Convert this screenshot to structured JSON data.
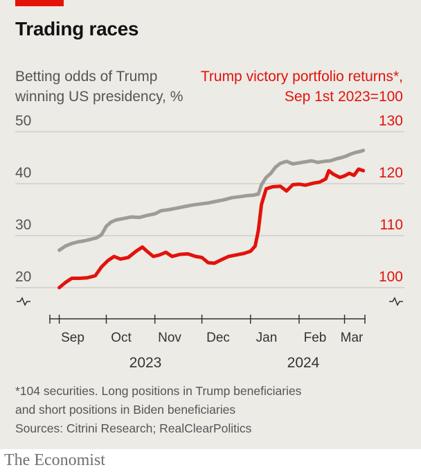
{
  "header": {
    "title": "Trading races",
    "left_axis_label": "Betting odds of Trump winning US presidency, %",
    "right_axis_label": "Trump victory portfolio returns*, Sep 1st 2023=100"
  },
  "footnote": {
    "note_line1": "*104 securities. Long positions in Trump beneficiaries",
    "note_line2": "and short positions in Biden beneficiaries",
    "sources": "Sources: Citrini Research; RealClearPolitics"
  },
  "brand": "The Economist",
  "colors": {
    "background": "#ecebe6",
    "odds_line": "#9e9d94",
    "portfolio_line": "#e3120b",
    "gridline": "#c8c8c4",
    "axis": "#333333"
  },
  "chart_data": {
    "type": "line",
    "title": "Trading races",
    "x_tick_labels": [
      "Sep",
      "Oct",
      "Nov",
      "Dec",
      "Jan",
      "Feb",
      "Mar"
    ],
    "year_labels": [
      "2023",
      "2024"
    ],
    "x_range": [
      "2023-08-26",
      "2024-03-14"
    ],
    "left_axis": {
      "label": "Betting odds of Trump winning US presidency, %",
      "ticks": [
        20,
        30,
        40,
        50
      ],
      "ylim": [
        20,
        50
      ],
      "broken_at_zero": true
    },
    "right_axis": {
      "label": "Trump victory portfolio returns*, Sep 1st 2023=100",
      "ticks": [
        100,
        110,
        120,
        130
      ],
      "ylim": [
        100,
        130
      ],
      "broken_at_zero": true
    },
    "grid": true,
    "series": [
      {
        "name": "Betting odds of Trump winning US presidency, %",
        "axis": "left",
        "color": "#9e9d94",
        "points": [
          [
            "2023-09-01",
            27.2
          ],
          [
            "2023-09-05",
            28.0
          ],
          [
            "2023-09-09",
            28.5
          ],
          [
            "2023-09-13",
            28.8
          ],
          [
            "2023-09-17",
            29.0
          ],
          [
            "2023-09-21",
            29.3
          ],
          [
            "2023-09-25",
            29.6
          ],
          [
            "2023-09-28",
            30.2
          ],
          [
            "2023-10-01",
            31.8
          ],
          [
            "2023-10-04",
            32.6
          ],
          [
            "2023-10-07",
            33.0
          ],
          [
            "2023-10-12",
            33.3
          ],
          [
            "2023-10-17",
            33.6
          ],
          [
            "2023-10-22",
            33.5
          ],
          [
            "2023-10-27",
            33.9
          ],
          [
            "2023-11-01",
            34.2
          ],
          [
            "2023-11-05",
            34.8
          ],
          [
            "2023-11-10",
            35.0
          ],
          [
            "2023-11-15",
            35.3
          ],
          [
            "2023-11-20",
            35.6
          ],
          [
            "2023-11-25",
            35.9
          ],
          [
            "2023-11-30",
            36.1
          ],
          [
            "2023-12-05",
            36.3
          ],
          [
            "2023-12-10",
            36.6
          ],
          [
            "2023-12-15",
            36.9
          ],
          [
            "2023-12-20",
            37.3
          ],
          [
            "2023-12-25",
            37.5
          ],
          [
            "2023-12-30",
            37.7
          ],
          [
            "2024-01-03",
            37.8
          ],
          [
            "2024-01-06",
            38.0
          ],
          [
            "2024-01-08",
            39.8
          ],
          [
            "2024-01-11",
            41.2
          ],
          [
            "2024-01-14",
            42.0
          ],
          [
            "2024-01-17",
            43.2
          ],
          [
            "2024-01-20",
            43.9
          ],
          [
            "2024-01-24",
            44.3
          ],
          [
            "2024-01-28",
            43.8
          ],
          [
            "2024-02-01",
            44.0
          ],
          [
            "2024-02-05",
            44.2
          ],
          [
            "2024-02-09",
            44.4
          ],
          [
            "2024-02-13",
            44.1
          ],
          [
            "2024-02-17",
            44.3
          ],
          [
            "2024-02-21",
            44.4
          ],
          [
            "2024-02-25",
            44.8
          ],
          [
            "2024-02-28",
            45.0
          ],
          [
            "2024-03-02",
            45.3
          ],
          [
            "2024-03-05",
            45.7
          ],
          [
            "2024-03-08",
            46.0
          ],
          [
            "2024-03-11",
            46.2
          ],
          [
            "2024-03-13",
            46.4
          ]
        ]
      },
      {
        "name": "Trump victory portfolio returns*, Sep 1st 2023=100",
        "axis": "right",
        "color": "#e3120b",
        "points": [
          [
            "2023-09-01",
            100.0
          ],
          [
            "2023-09-05",
            101.0
          ],
          [
            "2023-09-09",
            101.8
          ],
          [
            "2023-09-14",
            101.8
          ],
          [
            "2023-09-19",
            101.9
          ],
          [
            "2023-09-24",
            102.3
          ],
          [
            "2023-09-28",
            104.0
          ],
          [
            "2023-10-02",
            105.2
          ],
          [
            "2023-10-06",
            106.0
          ],
          [
            "2023-10-10",
            105.5
          ],
          [
            "2023-10-15",
            105.8
          ],
          [
            "2023-10-20",
            107.0
          ],
          [
            "2023-10-24",
            107.8
          ],
          [
            "2023-10-27",
            107.0
          ],
          [
            "2023-10-31",
            106.0
          ],
          [
            "2023-11-04",
            106.3
          ],
          [
            "2023-11-08",
            106.8
          ],
          [
            "2023-11-12",
            106.0
          ],
          [
            "2023-11-17",
            106.4
          ],
          [
            "2023-11-22",
            106.5
          ],
          [
            "2023-11-27",
            106.0
          ],
          [
            "2023-12-01",
            105.8
          ],
          [
            "2023-12-05",
            104.8
          ],
          [
            "2023-12-09",
            104.7
          ],
          [
            "2023-12-13",
            105.3
          ],
          [
            "2023-12-18",
            106.0
          ],
          [
            "2023-12-23",
            106.3
          ],
          [
            "2023-12-28",
            106.6
          ],
          [
            "2024-01-01",
            107.0
          ],
          [
            "2024-01-04",
            108.0
          ],
          [
            "2024-01-06",
            111.0
          ],
          [
            "2024-01-08",
            116.0
          ],
          [
            "2024-01-11",
            119.0
          ],
          [
            "2024-01-15",
            119.4
          ],
          [
            "2024-01-20",
            119.5
          ],
          [
            "2024-01-24",
            118.6
          ],
          [
            "2024-01-28",
            119.8
          ],
          [
            "2024-02-01",
            119.9
          ],
          [
            "2024-02-05",
            119.7
          ],
          [
            "2024-02-10",
            120.1
          ],
          [
            "2024-02-14",
            120.3
          ],
          [
            "2024-02-18",
            120.9
          ],
          [
            "2024-02-20",
            122.5
          ],
          [
            "2024-02-23",
            121.8
          ],
          [
            "2024-02-27",
            121.2
          ],
          [
            "2024-03-01",
            121.5
          ],
          [
            "2024-03-04",
            122.0
          ],
          [
            "2024-03-07",
            121.6
          ],
          [
            "2024-03-10",
            122.8
          ],
          [
            "2024-03-13",
            122.5
          ]
        ]
      }
    ]
  }
}
